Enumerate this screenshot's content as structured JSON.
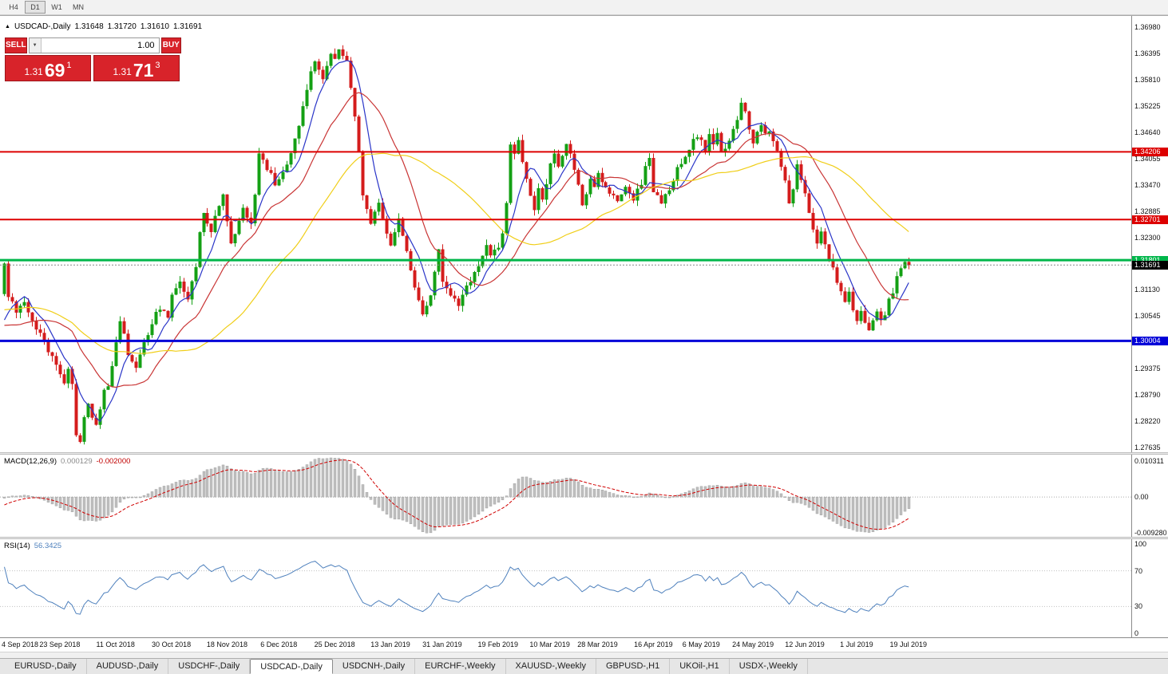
{
  "toolbar": {
    "timeframes": [
      {
        "label": "H4",
        "active": false
      },
      {
        "label": "D1",
        "active": true
      },
      {
        "label": "W1",
        "active": false
      },
      {
        "label": "MN",
        "active": false
      }
    ]
  },
  "trade_panel": {
    "sell_label": "SELL",
    "buy_label": "BUY",
    "volume": "1.00",
    "dropdown_icon": "▼",
    "sell_price": {
      "prefix": "1.31",
      "big": "69",
      "pip": "1"
    },
    "buy_price": {
      "prefix": "1.31",
      "big": "71",
      "pip": "3"
    }
  },
  "chart_data": {
    "type": "candlestick",
    "symbol": "USDCAD",
    "timeframe": "Daily",
    "header": {
      "collapse_icon": "▲",
      "title": "USDCAD-,Daily",
      "open": "1.31648",
      "high": "1.31720",
      "low": "1.31610",
      "close": "1.31691"
    },
    "price_range": {
      "top_tick": 1.3698,
      "bottom_tick": 1.27635
    },
    "y_axis": {
      "tick_labels": [
        "1.36980",
        "1.36395",
        "1.35810",
        "1.35225",
        "1.34640",
        "1.34055",
        "1.33470",
        "1.32885",
        "1.32300",
        "1.31715",
        "1.31130",
        "1.30545",
        "1.29960",
        "1.29375",
        "1.28790",
        "1.28220",
        "1.27635"
      ]
    },
    "x_axis": {
      "tick_labels": [
        {
          "text": "4 Sep 2018",
          "bar": 0
        },
        {
          "text": "23 Sep 2018",
          "bar": 14
        },
        {
          "text": "11 Oct 2018",
          "bar": 28
        },
        {
          "text": "30 Oct 2018",
          "bar": 42
        },
        {
          "text": "18 Nov 2018",
          "bar": 56
        },
        {
          "text": "6 Dec 2018",
          "bar": 69
        },
        {
          "text": "25 Dec 2018",
          "bar": 83
        },
        {
          "text": "13 Jan 2019",
          "bar": 97
        },
        {
          "text": "31 Jan 2019",
          "bar": 110
        },
        {
          "text": "19 Feb 2019",
          "bar": 124
        },
        {
          "text": "10 Mar 2019",
          "bar": 137
        },
        {
          "text": "28 Mar 2019",
          "bar": 149
        },
        {
          "text": "16 Apr 2019",
          "bar": 163
        },
        {
          "text": "6 May 2019",
          "bar": 175
        },
        {
          "text": "24 May 2019",
          "bar": 188
        },
        {
          "text": "12 Jun 2019",
          "bar": 201
        },
        {
          "text": "1 Jul 2019",
          "bar": 214
        },
        {
          "text": "19 Jul 2019",
          "bar": 227
        }
      ]
    },
    "horizontal_lines": [
      {
        "price": 1.34206,
        "label": "1.34206",
        "color": "#dd0000",
        "thickness": 2
      },
      {
        "price": 1.32701,
        "label": "1.32701",
        "color": "#dd0000",
        "thickness": 2
      },
      {
        "price": 1.31801,
        "label": "1.31801",
        "color": "#00b64a",
        "thickness": 3
      },
      {
        "price": 1.30004,
        "label": "1.30004",
        "color": "#0000d8",
        "thickness": 3
      }
    ],
    "bid_price": {
      "value": 1.31691,
      "label": "1.31691",
      "label_bg": "#000000"
    },
    "candles": {
      "up_color": "#14a014",
      "down_color": "#d41c1c",
      "bars": 228,
      "preroll": 60,
      "anchors": [
        [
          -60,
          1.315
        ],
        [
          -52,
          1.3185
        ],
        [
          -45,
          1.31
        ],
        [
          -38,
          1.3022
        ],
        [
          -30,
          1.3118
        ],
        [
          -24,
          1.3162
        ],
        [
          -18,
          1.3092
        ],
        [
          -12,
          1.3012
        ],
        [
          -6,
          1.2986
        ],
        [
          -2,
          1.304
        ],
        [
          0,
          1.3168
        ],
        [
          1,
          1.3102
        ],
        [
          3,
          1.3062
        ],
        [
          5,
          1.309
        ],
        [
          7,
          1.3042
        ],
        [
          9,
          1.3015
        ],
        [
          11,
          1.2982
        ],
        [
          13,
          1.2945
        ],
        [
          15,
          1.2908
        ],
        [
          16,
          1.2932
        ],
        [
          17,
          1.2898
        ],
        [
          18,
          1.2795
        ],
        [
          19,
          1.2778
        ],
        [
          20,
          1.2828
        ],
        [
          21,
          1.2858
        ],
        [
          22,
          1.2835
        ],
        [
          23,
          1.2808
        ],
        [
          24,
          1.2845
        ],
        [
          25,
          1.2885
        ],
        [
          26,
          1.2902
        ],
        [
          27,
          1.295
        ],
        [
          28,
          1.3
        ],
        [
          29,
          1.3042
        ],
        [
          30,
          1.3012
        ],
        [
          31,
          1.2968
        ],
        [
          33,
          1.2938
        ],
        [
          35,
          1.2992
        ],
        [
          37,
          1.3042
        ],
        [
          39,
          1.3075
        ],
        [
          41,
          1.3052
        ],
        [
          42,
          1.3105
        ],
        [
          44,
          1.3135
        ],
        [
          46,
          1.3092
        ],
        [
          48,
          1.3162
        ],
        [
          49,
          1.3242
        ],
        [
          50,
          1.3285
        ],
        [
          52,
          1.3248
        ],
        [
          54,
          1.3298
        ],
        [
          55,
          1.333
        ],
        [
          56,
          1.3272
        ],
        [
          57,
          1.3218
        ],
        [
          58,
          1.3242
        ],
        [
          60,
          1.3292
        ],
        [
          62,
          1.3262
        ],
        [
          63,
          1.3332
        ],
        [
          64,
          1.3415
        ],
        [
          66,
          1.3382
        ],
        [
          68,
          1.3352
        ],
        [
          69,
          1.3362
        ],
        [
          71,
          1.3398
        ],
        [
          73,
          1.3445
        ],
        [
          74,
          1.3482
        ],
        [
          75,
          1.3528
        ],
        [
          76,
          1.3562
        ],
        [
          77,
          1.3598
        ],
        [
          78,
          1.3625
        ],
        [
          79,
          1.3605
        ],
        [
          80,
          1.3582
        ],
        [
          81,
          1.3618
        ],
        [
          82,
          1.3645
        ],
        [
          83,
          1.3628
        ],
        [
          84,
          1.3655
        ],
        [
          86,
          1.362
        ],
        [
          87,
          1.3565
        ],
        [
          88,
          1.3498
        ],
        [
          89,
          1.3415
        ],
        [
          90,
          1.333
        ],
        [
          91,
          1.329
        ],
        [
          92,
          1.3255
        ],
        [
          93,
          1.3285
        ],
        [
          94,
          1.3305
        ],
        [
          95,
          1.3268
        ],
        [
          96,
          1.3242
        ],
        [
          97,
          1.3215
        ],
        [
          98,
          1.3245
        ],
        [
          99,
          1.3268
        ],
        [
          100,
          1.324
        ],
        [
          101,
          1.32
        ],
        [
          102,
          1.3162
        ],
        [
          103,
          1.3122
        ],
        [
          104,
          1.3085
        ],
        [
          105,
          1.3062
        ],
        [
          106,
          1.3078
        ],
        [
          107,
          1.3108
        ],
        [
          108,
          1.3148
        ],
        [
          109,
          1.3198
        ],
        [
          110,
          1.3132
        ],
        [
          112,
          1.3098
        ],
        [
          114,
          1.3078
        ],
        [
          116,
          1.3118
        ],
        [
          118,
          1.3152
        ],
        [
          120,
          1.3192
        ],
        [
          121,
          1.3215
        ],
        [
          122,
          1.3188
        ],
        [
          124,
          1.3212
        ],
        [
          125,
          1.3245
        ],
        [
          126,
          1.3302
        ],
        [
          127,
          1.3442
        ],
        [
          128,
          1.3415
        ],
        [
          129,
          1.3448
        ],
        [
          130,
          1.3392
        ],
        [
          131,
          1.3358
        ],
        [
          132,
          1.3322
        ],
        [
          133,
          1.3298
        ],
        [
          134,
          1.3338
        ],
        [
          135,
          1.3312
        ],
        [
          136,
          1.3345
        ],
        [
          137,
          1.3398
        ],
        [
          138,
          1.3422
        ],
        [
          139,
          1.3388
        ],
        [
          140,
          1.3412
        ],
        [
          141,
          1.3442
        ],
        [
          142,
          1.3412
        ],
        [
          143,
          1.3378
        ],
        [
          144,
          1.3342
        ],
        [
          145,
          1.3308
        ],
        [
          146,
          1.3332
        ],
        [
          147,
          1.3362
        ],
        [
          148,
          1.3342
        ],
        [
          149,
          1.3378
        ],
        [
          150,
          1.3355
        ],
        [
          152,
          1.3332
        ],
        [
          154,
          1.3312
        ],
        [
          156,
          1.3345
        ],
        [
          158,
          1.3318
        ],
        [
          160,
          1.3352
        ],
        [
          161,
          1.3385
        ],
        [
          162,
          1.3405
        ],
        [
          163,
          1.3335
        ],
        [
          165,
          1.3312
        ],
        [
          167,
          1.3342
        ],
        [
          169,
          1.3382
        ],
        [
          171,
          1.3415
        ],
        [
          173,
          1.3445
        ],
        [
          175,
          1.3452
        ],
        [
          176,
          1.3428
        ],
        [
          177,
          1.3462
        ],
        [
          178,
          1.3442
        ],
        [
          179,
          1.3468
        ],
        [
          180,
          1.3418
        ],
        [
          182,
          1.3445
        ],
        [
          184,
          1.3492
        ],
        [
          185,
          1.3532
        ],
        [
          186,
          1.351
        ],
        [
          187,
          1.3468
        ],
        [
          188,
          1.3438
        ],
        [
          189,
          1.3462
        ],
        [
          190,
          1.3482
        ],
        [
          191,
          1.3455
        ],
        [
          192,
          1.3472
        ],
        [
          193,
          1.3448
        ],
        [
          194,
          1.3425
        ],
        [
          195,
          1.3388
        ],
        [
          196,
          1.3352
        ],
        [
          197,
          1.3305
        ],
        [
          198,
          1.3342
        ],
        [
          199,
          1.3398
        ],
        [
          200,
          1.3362
        ],
        [
          201,
          1.3322
        ],
        [
          202,
          1.3282
        ],
        [
          203,
          1.3242
        ],
        [
          204,
          1.3212
        ],
        [
          205,
          1.3248
        ],
        [
          206,
          1.3218
        ],
        [
          207,
          1.3188
        ],
        [
          208,
          1.3162
        ],
        [
          209,
          1.3132
        ],
        [
          210,
          1.3108
        ],
        [
          211,
          1.3088
        ],
        [
          212,
          1.3112
        ],
        [
          213,
          1.3072
        ],
        [
          214,
          1.3048
        ],
        [
          215,
          1.3072
        ],
        [
          216,
          1.3042
        ],
        [
          217,
          1.3022
        ],
        [
          218,
          1.3048
        ],
        [
          219,
          1.3068
        ],
        [
          220,
          1.3042
        ],
        [
          221,
          1.3062
        ],
        [
          222,
          1.3088
        ],
        [
          223,
          1.3112
        ],
        [
          224,
          1.3142
        ],
        [
          225,
          1.3165
        ],
        [
          226,
          1.3178
        ],
        [
          227,
          1.3169
        ]
      ]
    },
    "moving_averages": [
      {
        "period": 7,
        "color": "#2a35c8"
      },
      {
        "period": 19,
        "color": "#c93535"
      },
      {
        "period": 43,
        "color": "#f0ce18"
      }
    ],
    "indicators": {
      "macd": {
        "name": "MACD(12,26,9)",
        "value": "0.000129",
        "signal_value": "-0.002000",
        "scale": {
          "max": "0.010311",
          "zero": "0.00",
          "min": "-0.009280"
        },
        "histogram_color": "#c0c0c0",
        "signal_color": "#d00000"
      },
      "rsi": {
        "name": "RSI(14)",
        "value": "56.3425",
        "scale": [
          "100",
          "70",
          "30",
          "0"
        ],
        "levels": [
          70,
          30
        ],
        "line_color": "#4f81bd"
      }
    }
  },
  "tab_bar": {
    "tabs": [
      {
        "label": "EURUSD-,Daily",
        "active": false
      },
      {
        "label": "AUDUSD-,Daily",
        "active": false
      },
      {
        "label": "USDCHF-,Daily",
        "active": false
      },
      {
        "label": "USDCAD-,Daily",
        "active": true
      },
      {
        "label": "USDCNH-,Daily",
        "active": false
      },
      {
        "label": "EURCHF-,Weekly",
        "active": false
      },
      {
        "label": "XAUUSD-,Weekly",
        "active": false
      },
      {
        "label": "GBPUSD-,H1",
        "active": false
      },
      {
        "label": "UKOil-,H1",
        "active": false
      },
      {
        "label": "USDX-,Weekly",
        "active": false
      }
    ]
  }
}
